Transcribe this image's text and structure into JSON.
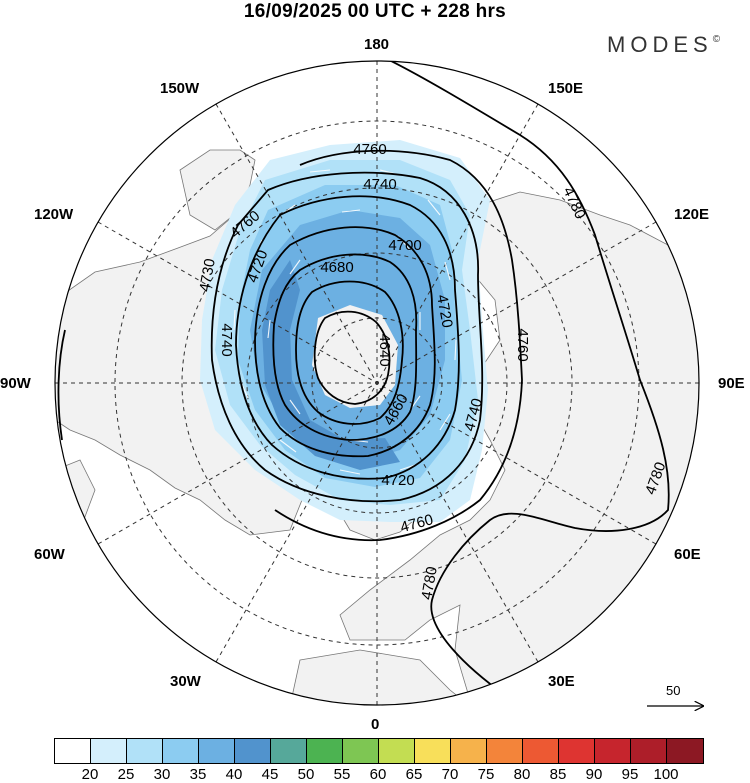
{
  "title": "16/09/2025  00 UTC  + 228 hrs",
  "brand": {
    "name": "MODES",
    "mark": "©"
  },
  "longitude_labels": {
    "top": "180",
    "upper_left": "150W",
    "upper_right": "150E",
    "left_upper": "120W",
    "right_upper": "120E",
    "left": "90W",
    "right": "90E",
    "left_lower": "60W",
    "right_lower": "60E",
    "lower_left": "30W",
    "lower_right": "30E",
    "bottom": "0"
  },
  "contour_labels": [
    "4760",
    "4740",
    "4700",
    "4680",
    "4720",
    "4730",
    "4740",
    "4640",
    "4720",
    "4760",
    "4660",
    "4740",
    "4720",
    "4760",
    "4780",
    "4760",
    "4780",
    "4780"
  ],
  "reference_vector": {
    "label": "50"
  },
  "colorbar": {
    "colors": [
      "#ffffff",
      "#d4effc",
      "#b1e1f8",
      "#8cccf1",
      "#6cb0e2",
      "#5193cd",
      "#56a89a",
      "#4cb351",
      "#7ec653",
      "#c3dd52",
      "#f8df5a",
      "#f6b24b",
      "#f3843a",
      "#ed5933",
      "#de3431",
      "#c6252d",
      "#ad1e29",
      "#8c1823"
    ],
    "tick_labels": [
      "20",
      "25",
      "30",
      "35",
      "40",
      "45",
      "50",
      "55",
      "60",
      "65",
      "70",
      "75",
      "80",
      "85",
      "90",
      "95",
      "100"
    ]
  }
}
